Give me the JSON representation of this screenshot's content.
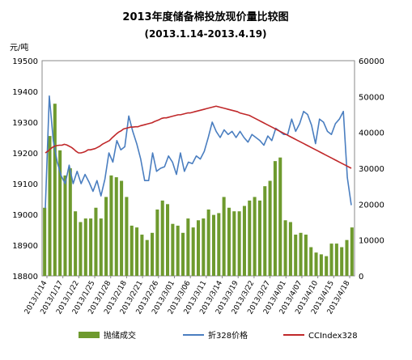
{
  "chart_data": {
    "type": "bar+line",
    "title": "2013年度储备棉投放现价量比较图",
    "subtitle": "(2013.1.14-2013.4.19)",
    "ylabel_left": "元/吨",
    "ylim_left": [
      18800,
      19500
    ],
    "yticks_left": [
      18800,
      18900,
      19000,
      19100,
      19200,
      19300,
      19400,
      19500
    ],
    "ylim_right": [
      0,
      60000
    ],
    "yticks_right": [
      0,
      10000,
      20000,
      30000,
      40000,
      50000,
      60000
    ],
    "x_tick_labels": [
      "2013/1/14",
      "2013/1/17",
      "2013/1/22",
      "2013/1/25",
      "2013/1/28",
      "2013/2/18",
      "2013/2/21",
      "2013/2/26",
      "2013/3/01",
      "2013/3/06",
      "2013/3/11",
      "2013/3/14",
      "2013/3/19",
      "2013/3/22",
      "2013/3/27",
      "2013/4/01",
      "2013/4/07",
      "2013/4/10",
      "2013/4/15",
      "2013/4/18"
    ],
    "legend_position": "bottom",
    "grid": false,
    "series": [
      {
        "name": "抛储成交",
        "type": "bar",
        "axis": "right",
        "color": "#6e9a2e",
        "values": [
          19000,
          39000,
          48000,
          35000,
          28000,
          30000,
          18000,
          15000,
          16000,
          16000,
          19000,
          16000,
          22000,
          28000,
          27500,
          26500,
          22000,
          14000,
          13500,
          11500,
          10000,
          12000,
          18500,
          21000,
          20000,
          14500,
          14000,
          12000,
          16000,
          13500,
          15500,
          16000,
          18500,
          17000,
          17500,
          22000,
          19000,
          18000,
          18000,
          19500,
          21000,
          22000,
          21000,
          25000,
          26500,
          32000,
          33000,
          15500,
          15000,
          11500,
          12000,
          11500,
          8000,
          6500,
          6000,
          5500,
          9000,
          9000,
          8000,
          10000,
          13500
        ]
      },
      {
        "name": "折328价格",
        "type": "line",
        "axis": "left",
        "color": "#4a7ec0",
        "values": [
          19020,
          19385,
          19240,
          19170,
          19125,
          19100,
          19160,
          19100,
          19140,
          19100,
          19130,
          19105,
          19075,
          19110,
          19060,
          19115,
          19200,
          19170,
          19240,
          19210,
          19220,
          19320,
          19270,
          19230,
          19180,
          19110,
          19110,
          19200,
          19140,
          19150,
          19155,
          19190,
          19170,
          19130,
          19200,
          19140,
          19170,
          19165,
          19190,
          19180,
          19205,
          19250,
          19300,
          19270,
          19250,
          19275,
          19260,
          19270,
          19250,
          19270,
          19250,
          19235,
          19260,
          19250,
          19240,
          19225,
          19255,
          19240,
          19280,
          19270,
          19260,
          19260,
          19310,
          19270,
          19295,
          19335,
          19325,
          19290,
          19230,
          19310,
          19300,
          19270,
          19260,
          19295,
          19310,
          19335,
          19120,
          19030
        ]
      },
      {
        "name": "CCIndex328",
        "type": "line",
        "axis": "left",
        "color": "#c0282a",
        "values": [
          19200,
          19205,
          19212,
          19218,
          19222,
          19224,
          19225,
          19225,
          19228,
          19226,
          19222,
          19218,
          19212,
          19205,
          19200,
          19200,
          19202,
          19205,
          19210,
          19210,
          19212,
          19214,
          19218,
          19222,
          19228,
          19232,
          19236,
          19240,
          19248,
          19255,
          19262,
          19268,
          19272,
          19278,
          19280,
          19282,
          19284,
          19284,
          19285,
          19285,
          19288,
          19290,
          19292,
          19294,
          19296,
          19298,
          19302,
          19305,
          19308,
          19312,
          19314,
          19314,
          19316,
          19318,
          19320,
          19322,
          19324,
          19324,
          19326,
          19328,
          19330,
          19330,
          19332,
          19334,
          19336,
          19338,
          19340,
          19342,
          19344,
          19346,
          19348,
          19350,
          19352,
          19350,
          19348,
          19346,
          19344,
          19342,
          19340,
          19338,
          19336,
          19334,
          19330,
          19328,
          19326,
          19324,
          19322,
          19318,
          19314,
          19310,
          19306,
          19302,
          19298,
          19294,
          19290,
          19286,
          19282,
          19278,
          19274,
          19270,
          19266,
          19262,
          19258,
          19254,
          19250,
          19246,
          19242,
          19238,
          19234,
          19230,
          19226,
          19222,
          19218,
          19214,
          19210,
          19206,
          19202,
          19198,
          19194,
          19190,
          19186,
          19182,
          19178,
          19174,
          19170,
          19166,
          19162,
          19158,
          19154,
          19150
        ]
      }
    ]
  }
}
